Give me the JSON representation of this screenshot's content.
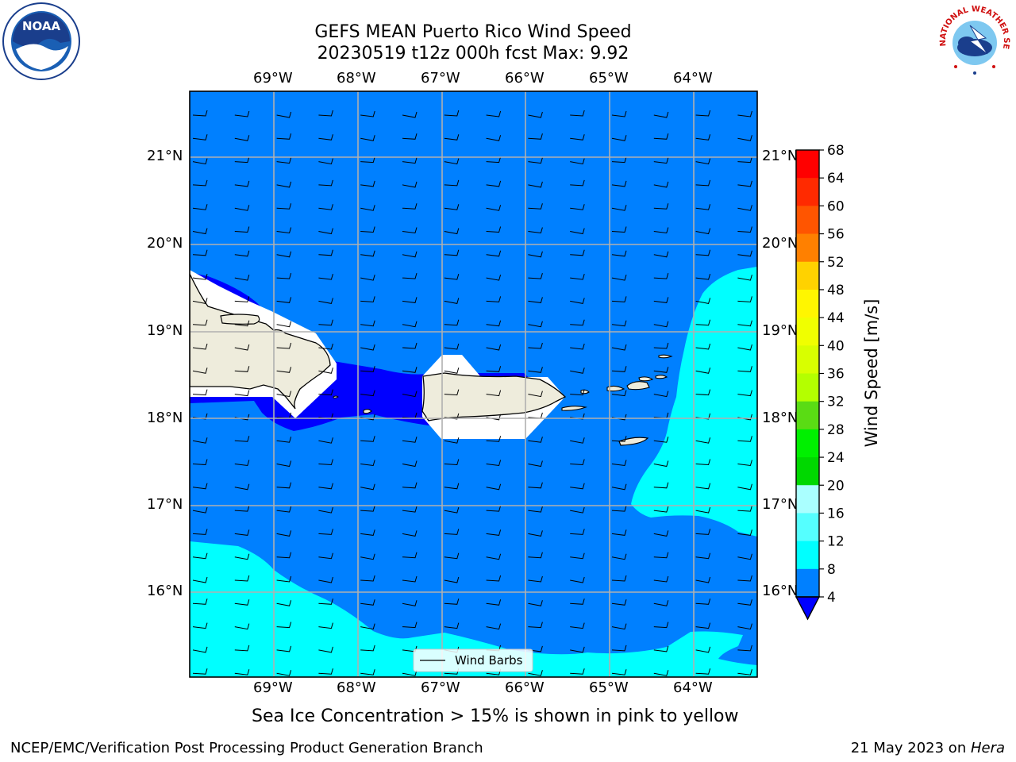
{
  "title_line1": "GEFS MEAN Puerto Rico Wind Speed",
  "title_line2": "20230519 t12z 000h fcst   Max: 9.92",
  "lon_labels": [
    "69°W",
    "68°W",
    "67°W",
    "66°W",
    "65°W",
    "64°W"
  ],
  "lat_labels": [
    "21°N",
    "20°N",
    "19°N",
    "18°N",
    "17°N",
    "16°N"
  ],
  "colorbar": {
    "label": "Wind Speed [m/s]",
    "ticks": [
      "68",
      "64",
      "60",
      "56",
      "52",
      "48",
      "44",
      "40",
      "36",
      "32",
      "28",
      "24",
      "20",
      "16",
      "12",
      "8",
      "4"
    ],
    "colors": [
      "#ff0000",
      "#ff2a00",
      "#ff5500",
      "#ff8000",
      "#ffaa00",
      "#ffd200",
      "#fff600",
      "#f0ff00",
      "#d8ff00",
      "#b4ff00",
      "#5adc14",
      "#00f000",
      "#00d800",
      "#55f07d",
      "#aaffff",
      "#55ffff",
      "#00ffff",
      "#0080ff"
    ],
    "extend_color": "#0000ff"
  },
  "legend": {
    "label": "Wind Barbs"
  },
  "note": "Sea Ice Concentration > 15% is shown in pink to yellow",
  "footer_left": "NCEP/EMC/Verification Post Processing Product Generation Branch",
  "footer_date": "21 May 2023 on ",
  "footer_host": "Hera",
  "logos": {
    "noaa": "NOAA",
    "nws": "NATIONAL WEATHER SERVICE"
  },
  "field_colors": {
    "ocean": "#0080ff",
    "calm": "#0000ff",
    "breeze": "#00ffff",
    "land": "#eeecdc",
    "nodata": "#ffffff"
  }
}
